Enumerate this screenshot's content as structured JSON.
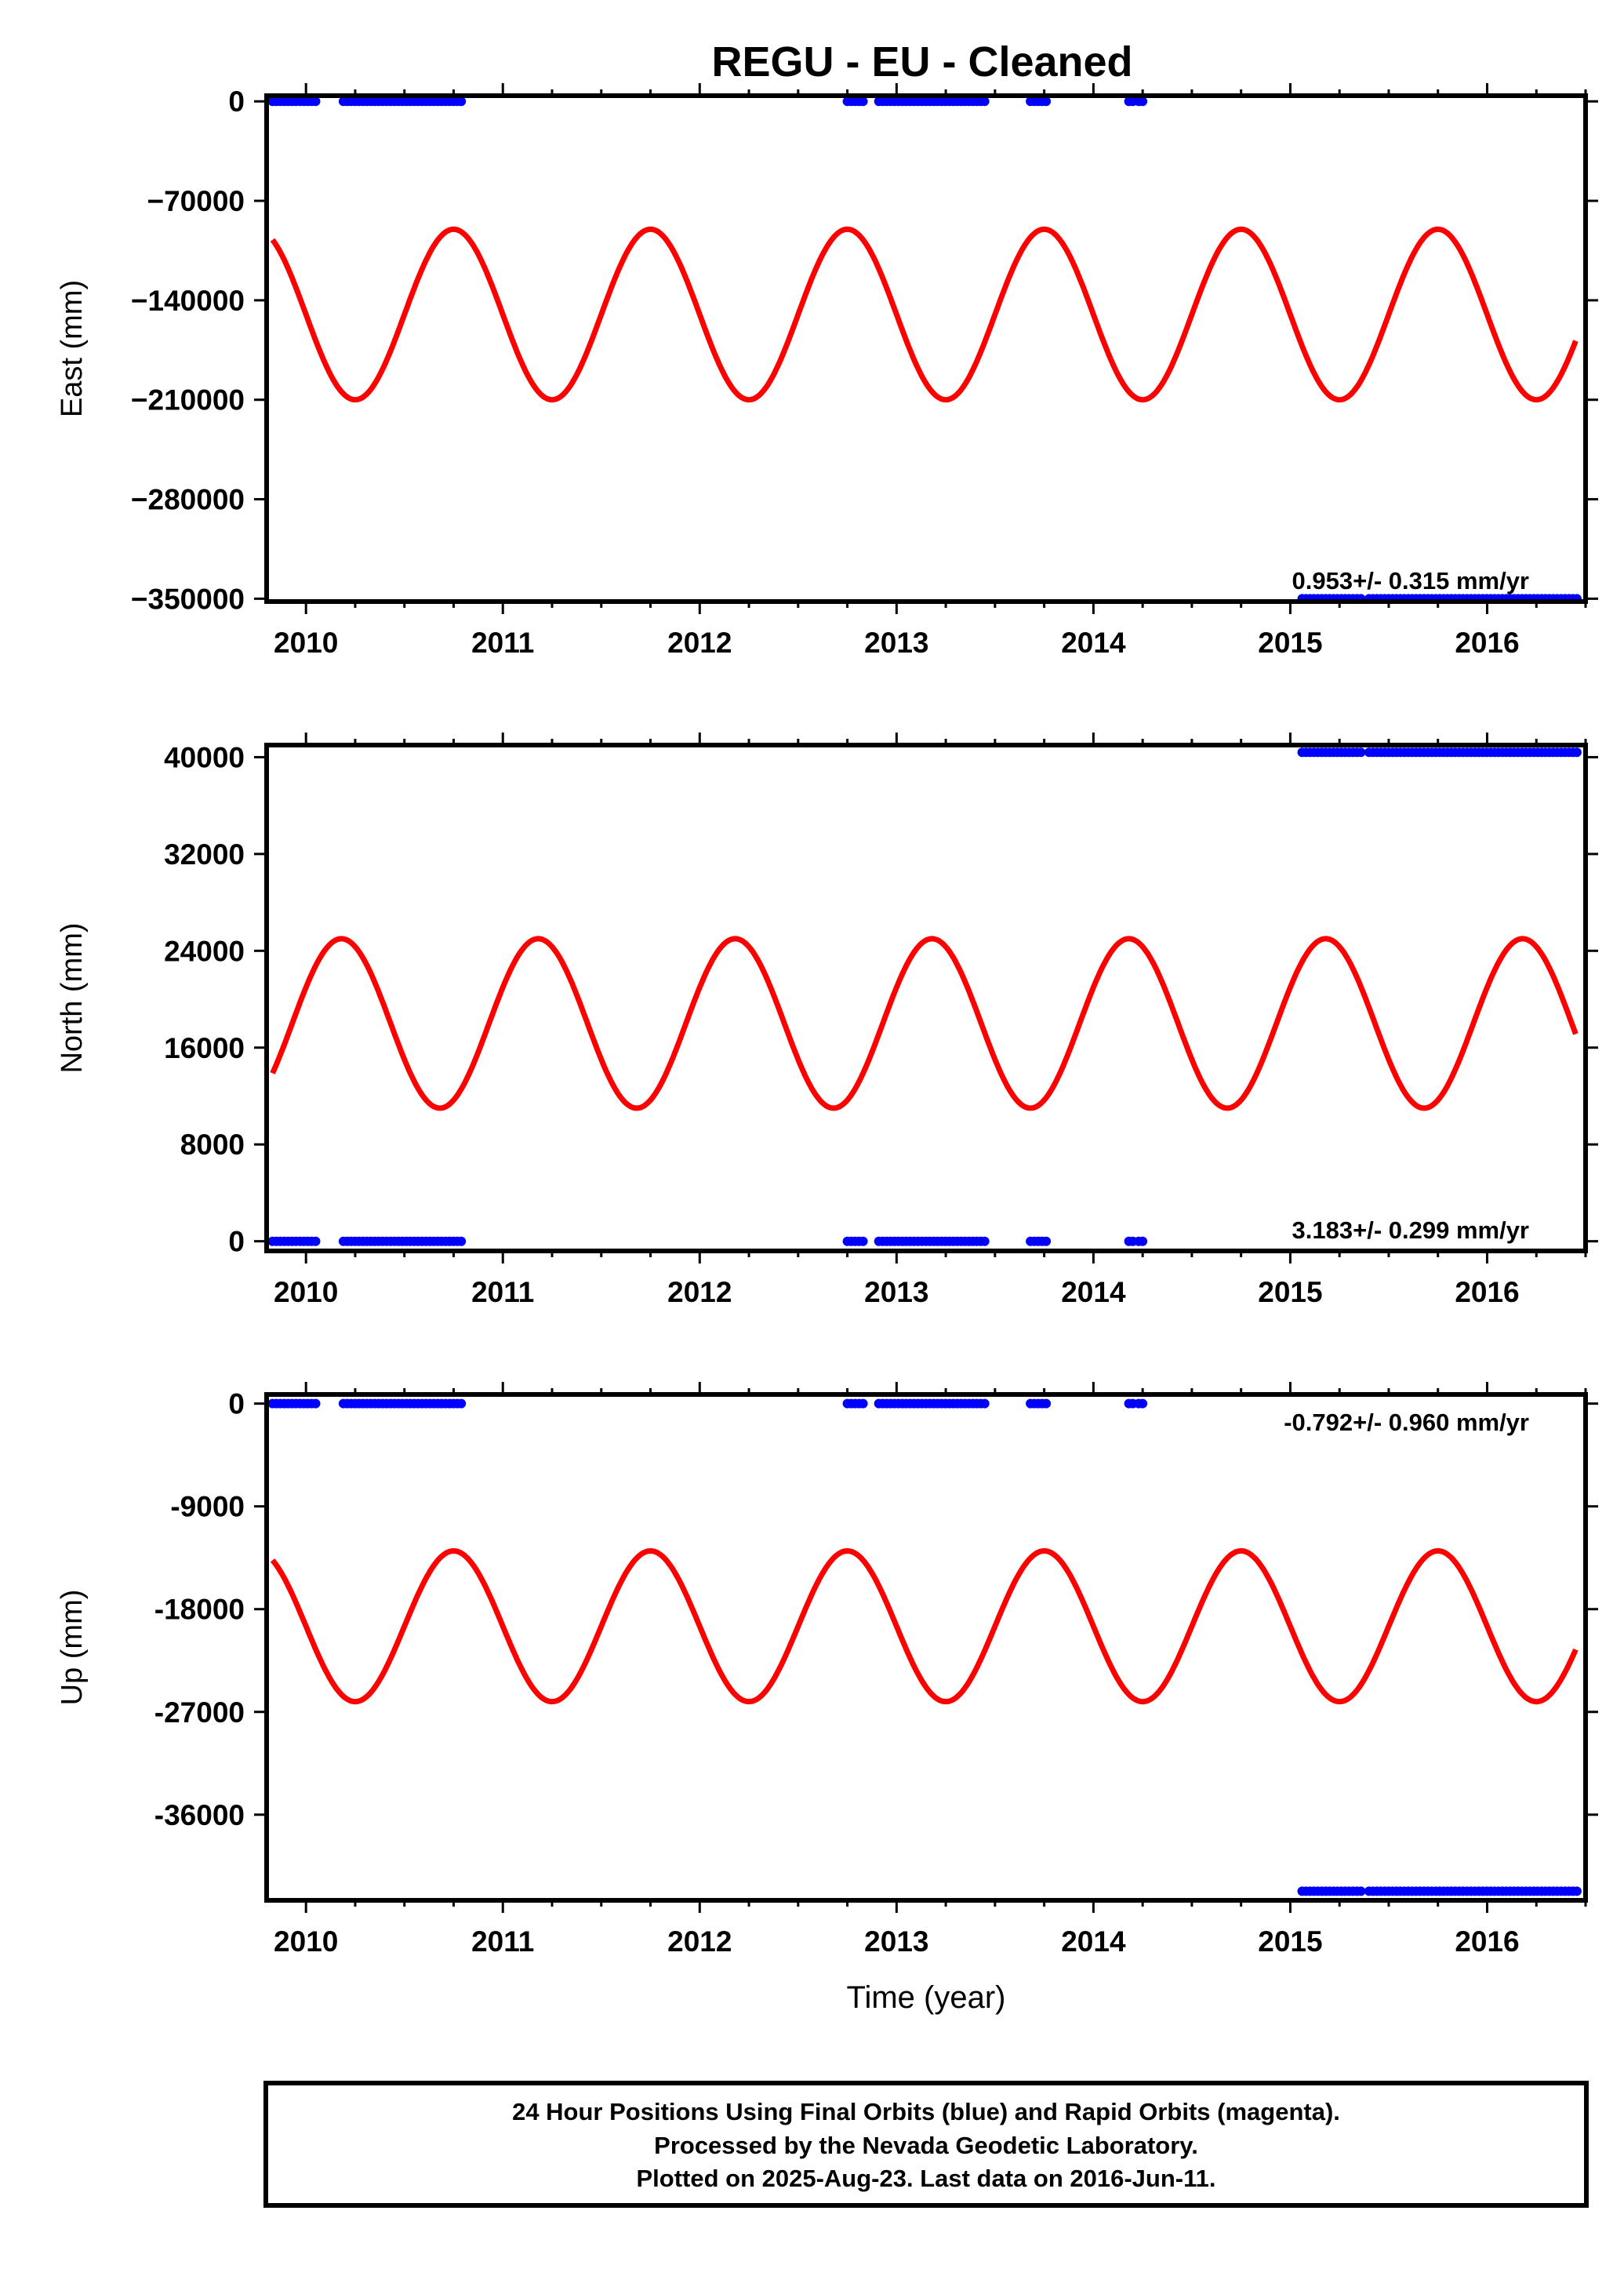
{
  "title": "REGU  - EU - Cleaned",
  "colors": {
    "data": "#0000ff",
    "model": "#ff0000",
    "axes": "#000000"
  },
  "footer": {
    "lines": [
      "24 Hour Positions Using Final Orbits (blue) and Rapid Orbits (magenta).",
      "Processed by the Nevada Geodetic Laboratory.",
      "Plotted on 2025-Aug-23. Last data on 2016-Jun-11."
    ]
  },
  "chart_data": [
    {
      "type": "scatter",
      "ylabel": "East (mm)",
      "xlabel": "",
      "xlim": [
        2009.8,
        2016.5
      ],
      "ylim": [
        -352000,
        4000
      ],
      "x_ticks": [
        2010,
        2011,
        2012,
        2013,
        2014,
        2015,
        2016
      ],
      "x_tick_labels": [
        "2010",
        "2011",
        "2012",
        "2013",
        "2014",
        "2015",
        "2016"
      ],
      "y_ticks": [
        0,
        -70000,
        -140000,
        -210000,
        -280000,
        -350000
      ],
      "y_tick_labels": [
        "0",
        "−70000",
        "−140000",
        "−210000",
        "−280000",
        "−350000"
      ],
      "rate_label": "0.953+/- 0.315 mm/yr",
      "rate_position": "bottom-right",
      "series": [
        {
          "kind": "points",
          "segments": [
            {
              "x": [
                2009.83,
                2010.05
              ],
              "y": 0
            },
            {
              "x": [
                2010.19,
                2010.41
              ],
              "y": 0
            },
            {
              "x": [
                2010.43,
                2010.8
              ],
              "y": 0
            },
            {
              "x": [
                2012.75,
                2012.83
              ],
              "y": 0
            },
            {
              "x": [
                2012.91,
                2013.46
              ],
              "y": 0
            },
            {
              "x": [
                2013.68,
                2013.77
              ],
              "y": 0
            },
            {
              "x": [
                2014.18,
                2014.2
              ],
              "y": 0
            },
            {
              "x": [
                2014.23,
                2014.25
              ],
              "y": 0
            },
            {
              "x": [
                2015.06,
                2015.36
              ],
              "y": -350000
            },
            {
              "x": [
                2015.4,
                2016.46
              ],
              "y": -350000
            }
          ]
        },
        {
          "kind": "sine",
          "name": "",
          "mean": -150000,
          "amplitude": 60000,
          "period": 1.0,
          "peak_x": 2010.75,
          "start": 2009.83,
          "end": 2016.45
        }
      ]
    },
    {
      "type": "scatter",
      "ylabel": "North (mm)",
      "xlabel": "",
      "xlim": [
        2009.8,
        2016.5
      ],
      "ylim": [
        -800,
        41000
      ],
      "x_ticks": [
        2010,
        2011,
        2012,
        2013,
        2014,
        2015,
        2016
      ],
      "x_tick_labels": [
        "2010",
        "2011",
        "2012",
        "2013",
        "2014",
        "2015",
        "2016"
      ],
      "y_ticks": [
        40000,
        32000,
        24000,
        16000,
        8000,
        0
      ],
      "y_tick_labels": [
        "40000",
        "32000",
        "24000",
        "16000",
        "8000",
        "0"
      ],
      "rate_label": "3.183+/- 0.299 mm/yr",
      "rate_position": "bottom-right",
      "series": [
        {
          "kind": "points",
          "segments": [
            {
              "x": [
                2009.83,
                2010.05
              ],
              "y": 0
            },
            {
              "x": [
                2010.19,
                2010.41
              ],
              "y": 0
            },
            {
              "x": [
                2010.43,
                2010.8
              ],
              "y": 0
            },
            {
              "x": [
                2012.75,
                2012.83
              ],
              "y": 0
            },
            {
              "x": [
                2012.91,
                2013.46
              ],
              "y": 0
            },
            {
              "x": [
                2013.68,
                2013.77
              ],
              "y": 0
            },
            {
              "x": [
                2014.18,
                2014.2
              ],
              "y": 0
            },
            {
              "x": [
                2014.23,
                2014.25
              ],
              "y": 0
            },
            {
              "x": [
                2015.06,
                2015.36
              ],
              "y": 40400
            },
            {
              "x": [
                2015.4,
                2016.46
              ],
              "y": 40400
            }
          ]
        },
        {
          "kind": "sine",
          "name": "",
          "mean": 18000,
          "amplitude": 7000,
          "period": 1.0,
          "peak_x": 2010.18,
          "start": 2009.83,
          "end": 2016.45
        }
      ]
    },
    {
      "type": "scatter",
      "ylabel": "Up (mm)",
      "xlabel": "Time (year)",
      "xlim": [
        2009.8,
        2016.5
      ],
      "ylim": [
        -43500,
        800
      ],
      "x_ticks": [
        2010,
        2011,
        2012,
        2013,
        2014,
        2015,
        2016
      ],
      "x_tick_labels": [
        "2010",
        "2011",
        "2012",
        "2013",
        "2014",
        "2015",
        "2016"
      ],
      "y_ticks": [
        0,
        -9000,
        -18000,
        -27000,
        -36000
      ],
      "y_tick_labels": [
        "0",
        "-9000",
        "-18000",
        "-27000",
        "-36000"
      ],
      "rate_label": "-0.792+/- 0.960 mm/yr",
      "rate_position": "top-right",
      "series": [
        {
          "kind": "points",
          "segments": [
            {
              "x": [
                2009.83,
                2010.05
              ],
              "y": 0
            },
            {
              "x": [
                2010.19,
                2010.41
              ],
              "y": 0
            },
            {
              "x": [
                2010.43,
                2010.8
              ],
              "y": 0
            },
            {
              "x": [
                2012.75,
                2012.83
              ],
              "y": 0
            },
            {
              "x": [
                2012.91,
                2013.46
              ],
              "y": 0
            },
            {
              "x": [
                2013.68,
                2013.77
              ],
              "y": 0
            },
            {
              "x": [
                2014.18,
                2014.2
              ],
              "y": 0
            },
            {
              "x": [
                2014.23,
                2014.25
              ],
              "y": 0
            },
            {
              "x": [
                2015.06,
                2015.36
              ],
              "y": -42700
            },
            {
              "x": [
                2015.4,
                2016.46
              ],
              "y": -42700
            }
          ]
        },
        {
          "kind": "sine",
          "name": "",
          "mean": -19500,
          "amplitude": 6600,
          "period": 1.0,
          "peak_x": 2010.75,
          "start": 2009.83,
          "end": 2016.45
        }
      ]
    }
  ]
}
